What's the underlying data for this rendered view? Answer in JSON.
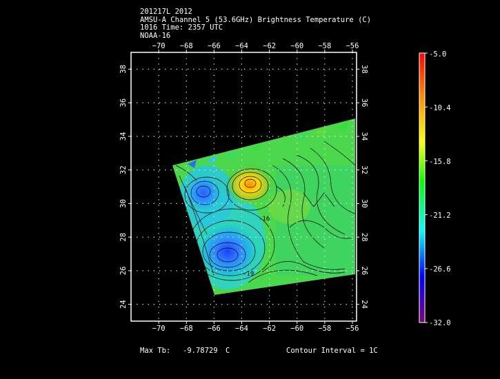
{
  "header": {
    "line1": "201217L 2012",
    "line2": "AMSU-A Channel 5 (53.6GHz) Brightness Temperature (C)",
    "line3": "1016 Time: 2357 UTC",
    "line4": "NOAA-16"
  },
  "map": {
    "lon_ticks": [
      -70,
      -68,
      -66,
      -64,
      -62,
      -60,
      -58,
      -56
    ],
    "lat_ticks": [
      24,
      26,
      28,
      30,
      32,
      34,
      36,
      38
    ],
    "lon_range": [
      -72,
      -55.7
    ],
    "lat_range": [
      23,
      39
    ],
    "contour_labels": [
      "-16",
      "-19"
    ]
  },
  "colorbar": {
    "labels": [
      "-5.0",
      "-10.4",
      "-15.8",
      "-21.2",
      "-26.6",
      "-32.0"
    ],
    "colors": [
      "#ff0000",
      "#ff8c00",
      "#ffff00",
      "#00ff00",
      "#00ffff",
      "#0000ff",
      "#800080"
    ]
  },
  "footer": {
    "max_tb_label": "Max Tb:",
    "max_tb_value": "-9.78729",
    "max_tb_unit": "C",
    "contour_interval": "Contour Interval = 1C"
  }
}
